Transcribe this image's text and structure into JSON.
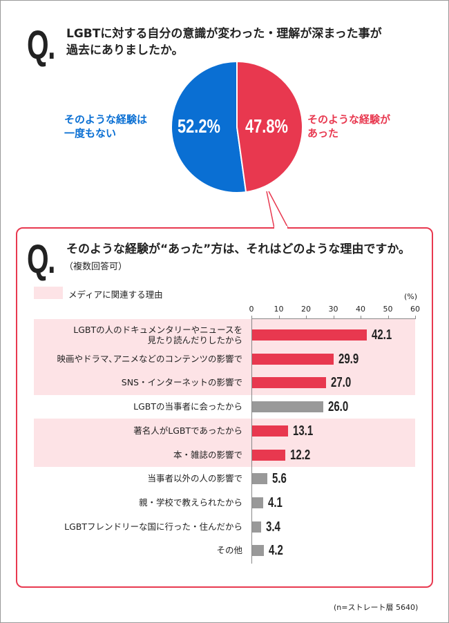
{
  "q1": {
    "mark": "Q.",
    "line1": "LGBTに対する自分の意識が変わった・理解が深まった事が",
    "line2": "過去にありましたか。"
  },
  "pie": {
    "slices": [
      {
        "label_1": "そのような経験は",
        "label_2": "一度もない",
        "value": 52.2,
        "display": "52.2%",
        "color": "#0a6fd3"
      },
      {
        "label_1": "そのような経験が",
        "label_2": "あった",
        "value": 47.8,
        "display": "47.8%",
        "color": "#e8384f"
      }
    ]
  },
  "q2": {
    "mark": "Q.",
    "line1": "そのような経験が“あった”方は、それはどのような理由ですか。",
    "line2": "（複数回答可）"
  },
  "legend": {
    "label": "メディアに関連する理由",
    "color": "#fde3e6"
  },
  "note": "(n=ストレート層 5640)",
  "chart_data": {
    "type": "bar",
    "orientation": "horizontal",
    "unit": "(%)",
    "xlim": [
      0,
      60
    ],
    "ticks": [
      "0",
      "10",
      "20",
      "30",
      "40",
      "50",
      "60"
    ],
    "categories": [
      "LGBTの人のドキュメンタリーやニュースを\n見たり読んだりしたから",
      "映画やドラマ､アニメなどのコンテンツの影響で",
      "SNS・インターネットの影響で",
      "LGBTの当事者に会ったから",
      "著名人がLGBTであったから",
      "本・雑誌の影響で",
      "当事者以外の人の影響で",
      "親・学校で教えられたから",
      "LGBTフレンドリーな国に行った・住んだから",
      "その他"
    ],
    "values": [
      42.1,
      29.9,
      27.0,
      26.0,
      13.1,
      12.2,
      5.6,
      4.1,
      3.4,
      4.2
    ],
    "labels": [
      "42.1",
      "29.9",
      "27.0",
      "26.0",
      "13.1",
      "12.2",
      "5.6",
      "4.1",
      "3.4",
      "4.2"
    ],
    "media_related": [
      true,
      true,
      true,
      false,
      true,
      true,
      false,
      false,
      false,
      false
    ],
    "colors": {
      "media": "#e8384f",
      "other": "#999999"
    }
  }
}
